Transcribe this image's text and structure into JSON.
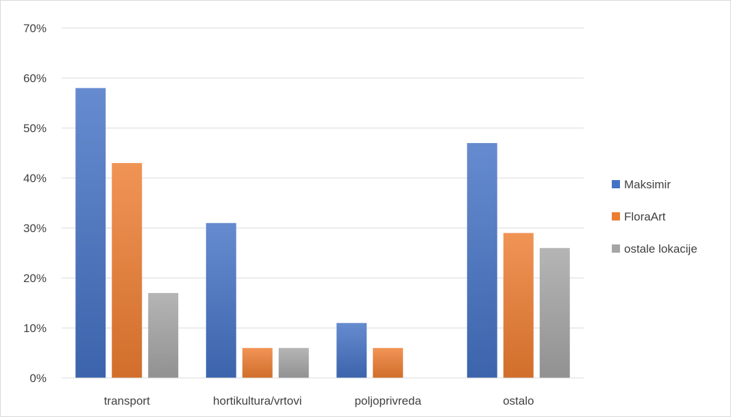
{
  "chart_data": {
    "type": "bar",
    "categories": [
      "transport",
      "hortikultura/vrtovi",
      "poljoprivreda",
      "ostalo"
    ],
    "series": [
      {
        "name": "Maksimir",
        "values": [
          58,
          31,
          11,
          47
        ],
        "color": "#4472c4"
      },
      {
        "name": "FloraArt",
        "values": [
          43,
          6,
          6,
          29
        ],
        "color": "#ed7d31"
      },
      {
        "name": "ostale lokacije",
        "values": [
          17,
          6,
          0,
          26
        ],
        "color": "#a5a5a5"
      }
    ],
    "ylim": [
      0,
      70
    ],
    "yticks": [
      0,
      10,
      20,
      30,
      40,
      50,
      60,
      70
    ],
    "ytick_labels": [
      "0%",
      "10%",
      "20%",
      "30%",
      "40%",
      "50%",
      "60%",
      "70%"
    ],
    "grid": true,
    "legend_position": "right"
  }
}
